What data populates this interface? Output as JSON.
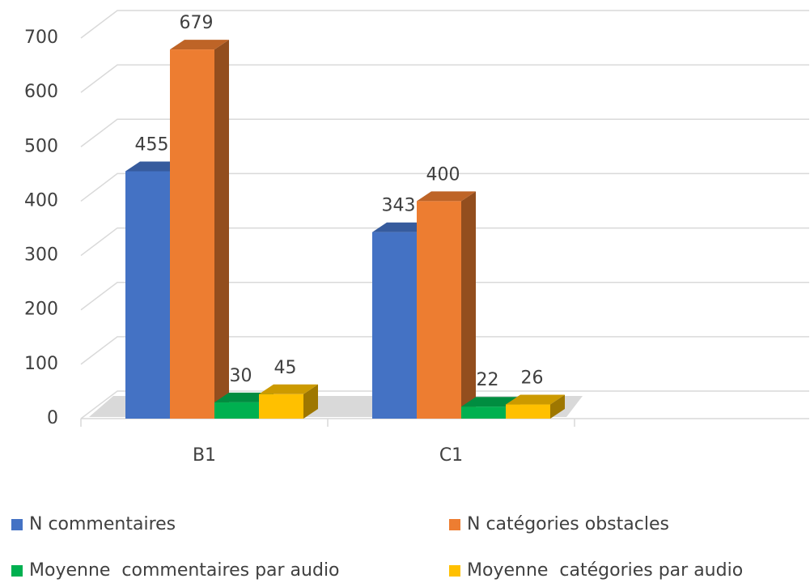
{
  "chart_data": {
    "type": "bar3d",
    "categories": [
      "B1",
      "C1"
    ],
    "series": [
      {
        "name": "N commentaires",
        "color": "#4472c4",
        "values": [
          455,
          343
        ]
      },
      {
        "name": "N catégories obstacles",
        "color": "#ed7d31",
        "values": [
          679,
          400
        ]
      },
      {
        "name": "Moyenne  commentaires par audio",
        "color": "#00b050",
        "values": [
          30,
          22
        ]
      },
      {
        "name": "Moyenne  catégories par audio",
        "color": "#ffc000",
        "values": [
          45,
          26
        ]
      }
    ],
    "ylim": [
      0,
      700
    ],
    "yticks": [
      0,
      100,
      200,
      300,
      400,
      500,
      600,
      700
    ],
    "grid": true,
    "legend": "bottom"
  }
}
